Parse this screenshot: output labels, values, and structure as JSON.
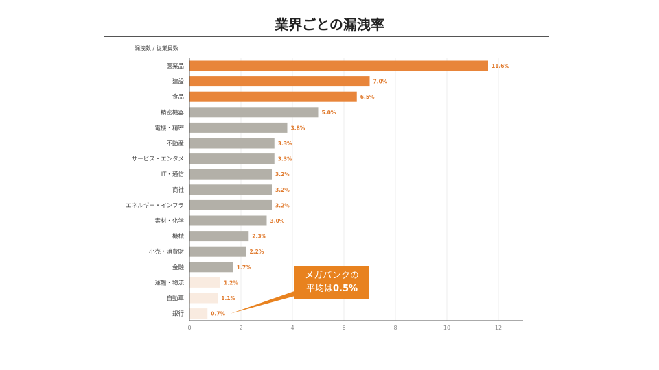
{
  "title": "業界ごとの漏洩率",
  "callout": {
    "line1": "メガバンクの",
    "line2_prefix": "平均は",
    "line2_value": "0.5%"
  },
  "chart_data": {
    "type": "bar",
    "orientation": "horizontal",
    "title": "",
    "ylabel": "漏洩数 / 従業員数",
    "xlabel": "",
    "xlim": [
      0,
      13
    ],
    "xticks": [
      0,
      2,
      4,
      6,
      8,
      10,
      12
    ],
    "grid": true,
    "categories": [
      "医薬品",
      "建設",
      "食品",
      "精密機器",
      "電機・精密",
      "不動産",
      "サービス・エンタメ",
      "IT・通信",
      "商社",
      "エネルギー・インフラ",
      "素材・化学",
      "機械",
      "小売・消費財",
      "金融",
      "運輸・物流",
      "自動車",
      "銀行"
    ],
    "values": [
      11.6,
      7.0,
      6.5,
      5.0,
      3.8,
      3.3,
      3.3,
      3.2,
      3.2,
      3.2,
      3.0,
      2.3,
      2.2,
      1.7,
      1.2,
      1.1,
      0.7
    ],
    "value_labels": [
      "11.6%",
      "7.0%",
      "6.5%",
      "5.0%",
      "3.8%",
      "3.3%",
      "3.3%",
      "3.2%",
      "3.2%",
      "3.2%",
      "3.0%",
      "2.3%",
      "2.2%",
      "1.7%",
      "1.2%",
      "1.1%",
      "0.7%"
    ],
    "bar_groups": [
      "high",
      "high",
      "high",
      "mid",
      "mid",
      "mid",
      "mid",
      "mid",
      "mid",
      "mid",
      "mid",
      "mid",
      "mid",
      "mid",
      "low",
      "low",
      "low"
    ],
    "colors": {
      "high": "#e8853a",
      "mid": "#b3b0a8",
      "low": "#f9ebe0",
      "value_label": "#e07b2f",
      "axis": "#555555",
      "grid": "#eeeeee",
      "text": "#444444"
    }
  }
}
